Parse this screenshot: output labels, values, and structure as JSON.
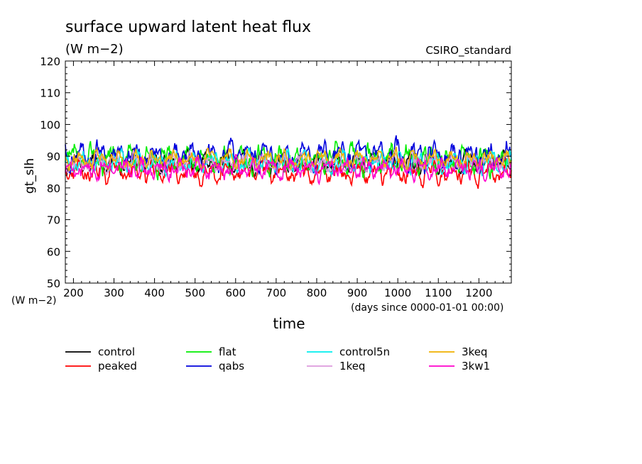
{
  "chart_data": {
    "type": "line",
    "title": "surface upward latent heat flux",
    "units": "(W m−2)",
    "y_axis_units": "(W m−2)",
    "source_label": "CSIRO_standard",
    "xlabel": "time",
    "x_units_note": "(days since 0000-01-01 00:00)",
    "ylabel": "gt_slh",
    "xlim": [
      180,
      1280
    ],
    "ylim": [
      50,
      120
    ],
    "x_ticks": [
      200,
      300,
      400,
      500,
      600,
      700,
      800,
      900,
      1000,
      1100,
      1200
    ],
    "x_tick_labels": [
      "200",
      "300",
      "400",
      "500",
      "600",
      "700",
      "800",
      "900",
      "1000",
      "1100",
      "1200"
    ],
    "y_ticks": [
      50,
      60,
      70,
      80,
      90,
      100,
      110,
      120
    ],
    "y_tick_labels": [
      "50",
      "60",
      "70",
      "80",
      "90",
      "100",
      "110",
      "120"
    ],
    "grid": false,
    "legend_position": "bottom",
    "series": [
      {
        "name": "control",
        "color": "#000000",
        "mean": 88,
        "amp": 4.0,
        "seed": 11
      },
      {
        "name": "peaked",
        "color": "#ff0000",
        "mean": 85,
        "amp": 4.5,
        "seed": 23
      },
      {
        "name": "flat",
        "color": "#00ee00",
        "mean": 89,
        "amp": 5.5,
        "seed": 37
      },
      {
        "name": "qabs",
        "color": "#0000dd",
        "mean": 90,
        "amp": 5.5,
        "seed": 41
      },
      {
        "name": "control5n",
        "color": "#00eeee",
        "mean": 88,
        "amp": 4.0,
        "seed": 53
      },
      {
        "name": "1keq",
        "color": "#dd99dd",
        "mean": 88,
        "amp": 3.5,
        "seed": 67
      },
      {
        "name": "3keq",
        "color": "#f0b000",
        "mean": 89,
        "amp": 3.5,
        "seed": 79
      },
      {
        "name": "3kw1",
        "color": "#ff00cc",
        "mean": 86,
        "amp": 4.0,
        "seed": 83
      }
    ]
  }
}
